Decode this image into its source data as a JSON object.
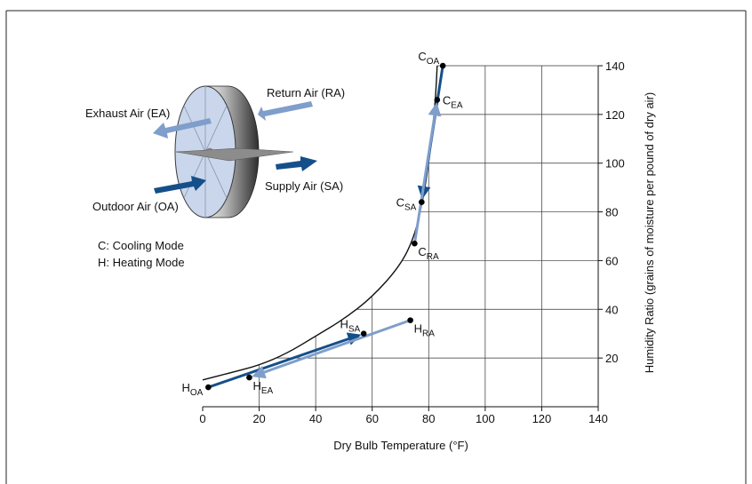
{
  "colors": {
    "dark_blue": "#154f8a",
    "light_blue": "#7f9ecb",
    "wheel_face": "#c9d6ec",
    "wheel_rim_dark": "#3e3e3e",
    "wheel_rim_light": "#d8d8d8",
    "grid": "#333333",
    "frame": "#222222"
  },
  "legend_text": {
    "exhaust": "Exhaust Air (EA)",
    "return": "Return Air (RA)",
    "supply": "Supply Air (SA)",
    "outdoor": "Outdoor Air (OA)",
    "cooling": "C: Cooling Mode",
    "heating": "H: Heating Mode"
  },
  "chart_data": {
    "type": "scatter",
    "xlabel": "Dry Bulb Temperature (°F)",
    "ylabel": "Humidity Ratio (grains of moisture per pound of dry air)",
    "xlim": [
      0,
      140
    ],
    "ylim": [
      0,
      140
    ],
    "xticks": [
      0,
      20,
      40,
      60,
      80,
      100,
      120,
      140
    ],
    "yticks": [
      20,
      40,
      60,
      80,
      100,
      120,
      140
    ],
    "grid": true,
    "saturation_curve": [
      [
        0,
        11
      ],
      [
        10,
        14
      ],
      [
        20,
        17
      ],
      [
        30,
        22
      ],
      [
        40,
        29
      ],
      [
        50,
        36
      ],
      [
        60,
        45
      ],
      [
        70,
        58
      ],
      [
        75,
        70
      ],
      [
        78,
        85
      ],
      [
        80,
        100
      ],
      [
        81.5,
        115
      ],
      [
        82.5,
        128
      ],
      [
        83,
        140
      ]
    ],
    "points": [
      {
        "id": "C_OA",
        "base": "C",
        "sub": "OA",
        "x": 85,
        "y": 140,
        "label_pos": "top-left"
      },
      {
        "id": "C_EA",
        "base": "C",
        "sub": "EA",
        "x": 83,
        "y": 126,
        "label_pos": "right"
      },
      {
        "id": "C_SA",
        "base": "C",
        "sub": "SA",
        "x": 77.5,
        "y": 84,
        "label_pos": "left"
      },
      {
        "id": "C_RA",
        "base": "C",
        "sub": "RA",
        "x": 75,
        "y": 67,
        "label_pos": "below-right"
      },
      {
        "id": "H_OA",
        "base": "H",
        "sub": "OA",
        "x": 2,
        "y": 8,
        "label_pos": "left"
      },
      {
        "id": "H_EA",
        "base": "H",
        "sub": "EA",
        "x": 16.5,
        "y": 12,
        "label_pos": "below-right"
      },
      {
        "id": "H_SA",
        "base": "H",
        "sub": "SA",
        "x": 57,
        "y": 30,
        "label_pos": "top-left"
      },
      {
        "id": "H_RA",
        "base": "H",
        "sub": "RA",
        "x": 73.5,
        "y": 35.5,
        "label_pos": "below-right"
      }
    ],
    "arrows": [
      {
        "from": "C_OA",
        "to": "C_SA",
        "color": "dark_blue"
      },
      {
        "from": "C_RA",
        "to": "C_EA",
        "color": "light_blue"
      },
      {
        "from": "H_OA",
        "to": "H_SA",
        "color": "dark_blue"
      },
      {
        "from": "H_RA",
        "to": "H_EA",
        "color": "light_blue"
      }
    ]
  }
}
